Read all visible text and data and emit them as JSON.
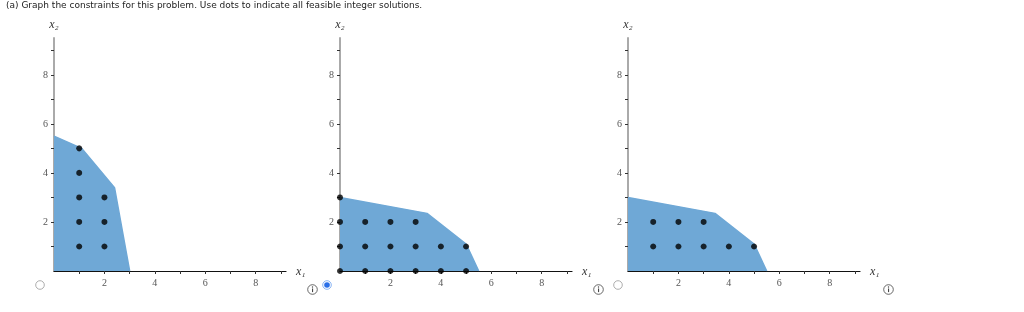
{
  "chart_data": [
    {
      "type": "area",
      "title": "(a)   Graph the constraints for this problem. Use dots to indicate all feasible integer solutions.",
      "xlabel": "x₁",
      "ylabel": "x₂",
      "xlim": [
        0,
        9.2
      ],
      "ylim": [
        0,
        9.5
      ],
      "xticks": [
        {
          "value": 1,
          "label": null
        },
        2,
        {
          "value": 3,
          "label": null
        },
        4,
        {
          "value": 5,
          "label": null
        },
        6,
        {
          "value": 7,
          "label": null
        },
        8,
        {
          "value": 9,
          "label": null
        }
      ],
      "yticks": [
        {
          "value": 1,
          "label": null
        },
        2,
        {
          "value": 3,
          "label": null
        },
        4,
        {
          "value": 5,
          "label": null
        },
        6,
        {
          "value": 7,
          "label": null
        },
        8,
        {
          "value": 9,
          "label": null
        }
      ],
      "grid": false,
      "series": [
        {
          "type": "area",
          "color": "#6fa8d6",
          "x": [
            0,
            1.1,
            2.4,
            3.0
          ],
          "values": [
            5.5,
            5.0,
            3.4,
            0
          ]
        },
        {
          "type": "scatter",
          "color": "#000000",
          "x": [
            1,
            1,
            1,
            2,
            1,
            2,
            1,
            2
          ],
          "values": [
            5,
            4,
            3,
            3,
            2,
            2,
            1,
            1
          ]
        }
      ]
    },
    {
      "type": "area",
      "xlabel": "x₁",
      "ylabel": "x₂",
      "xlim": [
        0,
        9.2
      ],
      "ylim": [
        0,
        9.5
      ],
      "xticks": [
        {
          "value": 1,
          "label": null
        },
        2,
        {
          "value": 3,
          "label": null
        },
        4,
        {
          "value": 5,
          "label": null
        },
        6,
        {
          "value": 7,
          "label": null
        },
        8,
        {
          "value": 9,
          "label": null
        }
      ],
      "yticks": [
        {
          "value": 1,
          "label": null
        },
        2,
        {
          "value": 3,
          "label": null
        },
        4,
        {
          "value": 5,
          "label": null
        },
        6,
        {
          "value": 7,
          "label": null
        },
        8,
        {
          "value": 9,
          "label": null
        }
      ],
      "grid": false,
      "series": [
        {
          "type": "area",
          "color": "#6fa8d6",
          "x": [
            0,
            3.45,
            5.0,
            5.5
          ],
          "values": [
            3.0,
            2.35,
            1.1,
            0
          ]
        },
        {
          "type": "scatter",
          "color": "#000000",
          "x": [
            0,
            0,
            1,
            2,
            3,
            0,
            1,
            2,
            3,
            4,
            5,
            0,
            1,
            2,
            3,
            4,
            5
          ],
          "values": [
            3,
            2,
            2,
            2,
            2,
            1,
            1,
            1,
            1,
            1,
            1,
            0,
            0,
            0,
            0,
            0,
            0
          ]
        }
      ]
    },
    {
      "type": "area",
      "xlabel": "x₁",
      "ylabel": "x₂",
      "xlim": [
        0,
        9.2
      ],
      "ylim": [
        0,
        9.5
      ],
      "xticks": [
        {
          "value": 1,
          "label": null
        },
        2,
        {
          "value": 3,
          "label": null
        },
        4,
        {
          "value": 5,
          "label": null
        },
        6,
        {
          "value": 7,
          "label": null
        },
        8,
        {
          "value": 9,
          "label": null
        }
      ],
      "yticks": [
        {
          "value": 1,
          "label": null
        },
        2,
        {
          "value": 3,
          "label": null
        },
        4,
        {
          "value": 5,
          "label": null
        },
        6,
        {
          "value": 7,
          "label": null
        },
        8,
        {
          "value": 9,
          "label": null
        }
      ],
      "grid": false,
      "series": [
        {
          "type": "area",
          "color": "#6fa8d6",
          "x": [
            0,
            3.45,
            5.0,
            5.5
          ],
          "values": [
            3.0,
            2.35,
            1.1,
            0
          ]
        },
        {
          "type": "scatter",
          "color": "#000000",
          "x": [
            1,
            2,
            3,
            1,
            2,
            3,
            4,
            5
          ],
          "values": [
            2,
            2,
            2,
            1,
            1,
            1,
            1,
            1
          ]
        }
      ]
    }
  ]
}
